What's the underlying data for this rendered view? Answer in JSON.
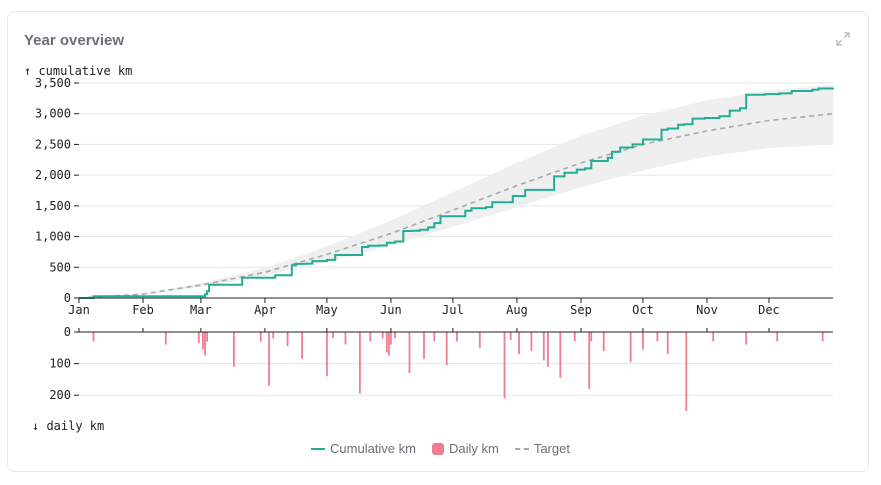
{
  "card": {
    "title": "Year overview"
  },
  "colors": {
    "cumulative": "#21ad96",
    "daily": "#f07d90",
    "target": "#a9a9a9",
    "band": "#efefef",
    "grid": "#e6e6e6",
    "axis": "#222222"
  },
  "chart_data": [
    {
      "type": "line",
      "ylabel": "↑ cumulative km",
      "x_ticks": [
        "Jan",
        "Feb",
        "Mar",
        "Apr",
        "May",
        "Jun",
        "Jul",
        "Aug",
        "Sep",
        "Oct",
        "Nov",
        "Dec"
      ],
      "y_ticks": [
        "0",
        "500",
        "1,000",
        "1,500",
        "2,000",
        "2,500",
        "3,000",
        "3,500"
      ],
      "ylim": [
        0,
        3500
      ],
      "xlim_days": [
        0,
        365
      ],
      "grid": true,
      "series": [
        {
          "name": "Cumulative km",
          "style": "step",
          "points": [
            [
              0,
              0
            ],
            [
              7,
              30
            ],
            [
              42,
              30
            ],
            [
              59,
              30
            ],
            [
              61,
              60
            ],
            [
              62,
              110
            ],
            [
              63,
              215
            ],
            [
              75,
              215
            ],
            [
              79,
              330
            ],
            [
              93,
              330
            ],
            [
              95,
              370
            ],
            [
              102,
              370
            ],
            [
              103,
              530
            ],
            [
              105,
              555
            ],
            [
              110,
              560
            ],
            [
              113,
              600
            ],
            [
              120,
              620
            ],
            [
              124,
              700
            ],
            [
              134,
              700
            ],
            [
              137,
              830
            ],
            [
              140,
              850
            ],
            [
              145,
              855
            ],
            [
              149,
              900
            ],
            [
              153,
              920
            ],
            [
              157,
              1090
            ],
            [
              161,
              1095
            ],
            [
              165,
              1110
            ],
            [
              169,
              1150
            ],
            [
              172,
              1220
            ],
            [
              175,
              1330
            ],
            [
              185,
              1330
            ],
            [
              187,
              1420
            ],
            [
              190,
              1460
            ],
            [
              197,
              1480
            ],
            [
              200,
              1560
            ],
            [
              206,
              1560
            ],
            [
              210,
              1660
            ],
            [
              216,
              1760
            ],
            [
              228,
              1760
            ],
            [
              230,
              1980
            ],
            [
              235,
              2040
            ],
            [
              241,
              2090
            ],
            [
              245,
              2110
            ],
            [
              248,
              2230
            ],
            [
              256,
              2280
            ],
            [
              258,
              2380
            ],
            [
              262,
              2450
            ],
            [
              268,
              2500
            ],
            [
              273,
              2580
            ],
            [
              280,
              2580
            ],
            [
              282,
              2740
            ],
            [
              285,
              2760
            ],
            [
              290,
              2820
            ],
            [
              293,
              2830
            ],
            [
              297,
              2920
            ],
            [
              303,
              2930
            ],
            [
              310,
              2960
            ],
            [
              315,
              3050
            ],
            [
              320,
              3090
            ],
            [
              323,
              3310
            ],
            [
              332,
              3320
            ],
            [
              339,
              3330
            ],
            [
              345,
              3370
            ],
            [
              355,
              3390
            ],
            [
              358,
              3410
            ],
            [
              365,
              3420
            ]
          ]
        },
        {
          "name": "Target",
          "style": "dashed",
          "points": [
            [
              0,
              0
            ],
            [
              30,
              60
            ],
            [
              59,
              210
            ],
            [
              90,
              420
            ],
            [
              120,
              710
            ],
            [
              151,
              1050
            ],
            [
              181,
              1430
            ],
            [
              212,
              1830
            ],
            [
              243,
              2200
            ],
            [
              273,
              2500
            ],
            [
              304,
              2720
            ],
            [
              334,
              2890
            ],
            [
              365,
              3000
            ]
          ]
        },
        {
          "name": "band_upper",
          "points": [
            [
              0,
              0
            ],
            [
              30,
              70
            ],
            [
              59,
              240
            ],
            [
              90,
              490
            ],
            [
              120,
              840
            ],
            [
              151,
              1260
            ],
            [
              181,
              1720
            ],
            [
              212,
              2200
            ],
            [
              243,
              2640
            ],
            [
              273,
              2970
            ],
            [
              304,
              3220
            ],
            [
              334,
              3380
            ],
            [
              365,
              3470
            ]
          ]
        },
        {
          "name": "band_lower",
          "points": [
            [
              0,
              0
            ],
            [
              30,
              50
            ],
            [
              59,
              180
            ],
            [
              90,
              360
            ],
            [
              120,
              590
            ],
            [
              151,
              860
            ],
            [
              181,
              1160
            ],
            [
              212,
              1480
            ],
            [
              243,
              1800
            ],
            [
              273,
              2080
            ],
            [
              304,
              2300
            ],
            [
              334,
              2440
            ],
            [
              365,
              2500
            ]
          ]
        }
      ]
    },
    {
      "type": "bar",
      "ylabel": "↓ daily km",
      "y_ticks": [
        "0",
        "100",
        "200"
      ],
      "ylim": [
        0,
        250
      ],
      "inverted": true,
      "series": [
        {
          "name": "Daily km",
          "points": [
            [
              7,
              30
            ],
            [
              42,
              40
            ],
            [
              58,
              35
            ],
            [
              60,
              55
            ],
            [
              61,
              75
            ],
            [
              62,
              30
            ],
            [
              75,
              110
            ],
            [
              88,
              30
            ],
            [
              92,
              170
            ],
            [
              94,
              20
            ],
            [
              101,
              45
            ],
            [
              108,
              85
            ],
            [
              120,
              140
            ],
            [
              123,
              20
            ],
            [
              129,
              40
            ],
            [
              136,
              195
            ],
            [
              141,
              30
            ],
            [
              147,
              20
            ],
            [
              149,
              65
            ],
            [
              150,
              75
            ],
            [
              151,
              40
            ],
            [
              153,
              20
            ],
            [
              160,
              130
            ],
            [
              167,
              85
            ],
            [
              172,
              30
            ],
            [
              178,
              105
            ],
            [
              183,
              30
            ],
            [
              194,
              50
            ],
            [
              206,
              210
            ],
            [
              209,
              25
            ],
            [
              213,
              70
            ],
            [
              219,
              60
            ],
            [
              225,
              90
            ],
            [
              227,
              110
            ],
            [
              233,
              145
            ],
            [
              240,
              30
            ],
            [
              247,
              180
            ],
            [
              248,
              30
            ],
            [
              254,
              60
            ],
            [
              267,
              95
            ],
            [
              273,
              55
            ],
            [
              280,
              30
            ],
            [
              285,
              70
            ],
            [
              294,
              250
            ],
            [
              307,
              30
            ],
            [
              323,
              40
            ],
            [
              338,
              30
            ],
            [
              360,
              30
            ]
          ]
        }
      ]
    }
  ],
  "legend": [
    {
      "label": "Cumulative km",
      "kind": "line"
    },
    {
      "label": "Daily km",
      "kind": "box"
    },
    {
      "label": "Target",
      "kind": "dash"
    }
  ]
}
